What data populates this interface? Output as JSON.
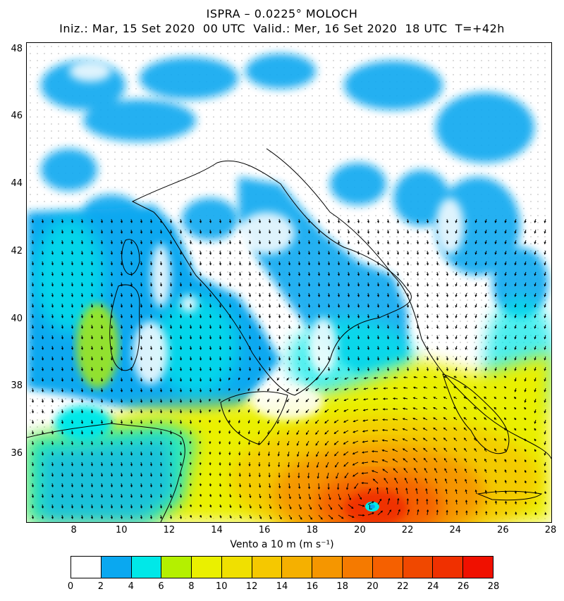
{
  "title_line1": "ISPRA – 0.0225° MOLOCH",
  "title_line2": "Iniz.: Mar, 15 Set 2020  00 UTC  Valid.: Mer, 16 Set 2020  18 UTC  T=+42h",
  "map": {
    "lon_range": [
      6,
      28
    ],
    "lat_range": [
      34,
      48.2
    ],
    "lat_ticks": [
      "48",
      "46",
      "44",
      "42",
      "40",
      "38",
      "36"
    ],
    "lon_ticks": [
      "8",
      "10",
      "12",
      "14",
      "16",
      "18",
      "20",
      "22",
      "24",
      "26",
      "28"
    ],
    "field": "10 m wind speed with wind arrows",
    "cyclone_center_label_lonlat": [
      20.2,
      34.9
    ]
  },
  "colorbar": {
    "label": "Vento a 10 m (m s⁻¹)",
    "ticks": [
      "0",
      "2",
      "4",
      "6",
      "8",
      "10",
      "12",
      "14",
      "16",
      "18",
      "20",
      "22",
      "24",
      "26",
      "28"
    ],
    "colors": [
      "#ffffff",
      "#0aa8f0",
      "#00e8e8",
      "#b4f000",
      "#eaf000",
      "#f0e000",
      "#f5c800",
      "#f5b000",
      "#f59600",
      "#f57a00",
      "#f56000",
      "#f04800",
      "#f03000",
      "#f01000"
    ]
  }
}
